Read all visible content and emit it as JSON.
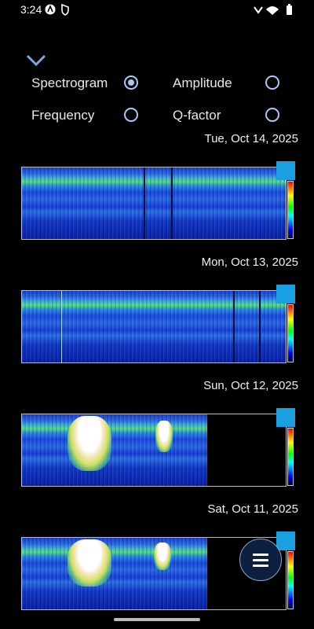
{
  "status_bar": {
    "time": "3:24"
  },
  "options": [
    {
      "label": "Spectrogram",
      "selected": true
    },
    {
      "label": "Amplitude",
      "selected": false
    },
    {
      "label": "Frequency",
      "selected": false
    },
    {
      "label": "Q-factor",
      "selected": false
    }
  ],
  "days": [
    {
      "date": "Tue, Oct 14, 2025"
    },
    {
      "date": "Mon, Oct 13, 2025"
    },
    {
      "date": "Sun, Oct 12, 2025"
    },
    {
      "date": "Sat, Oct 11, 2025"
    }
  ]
}
